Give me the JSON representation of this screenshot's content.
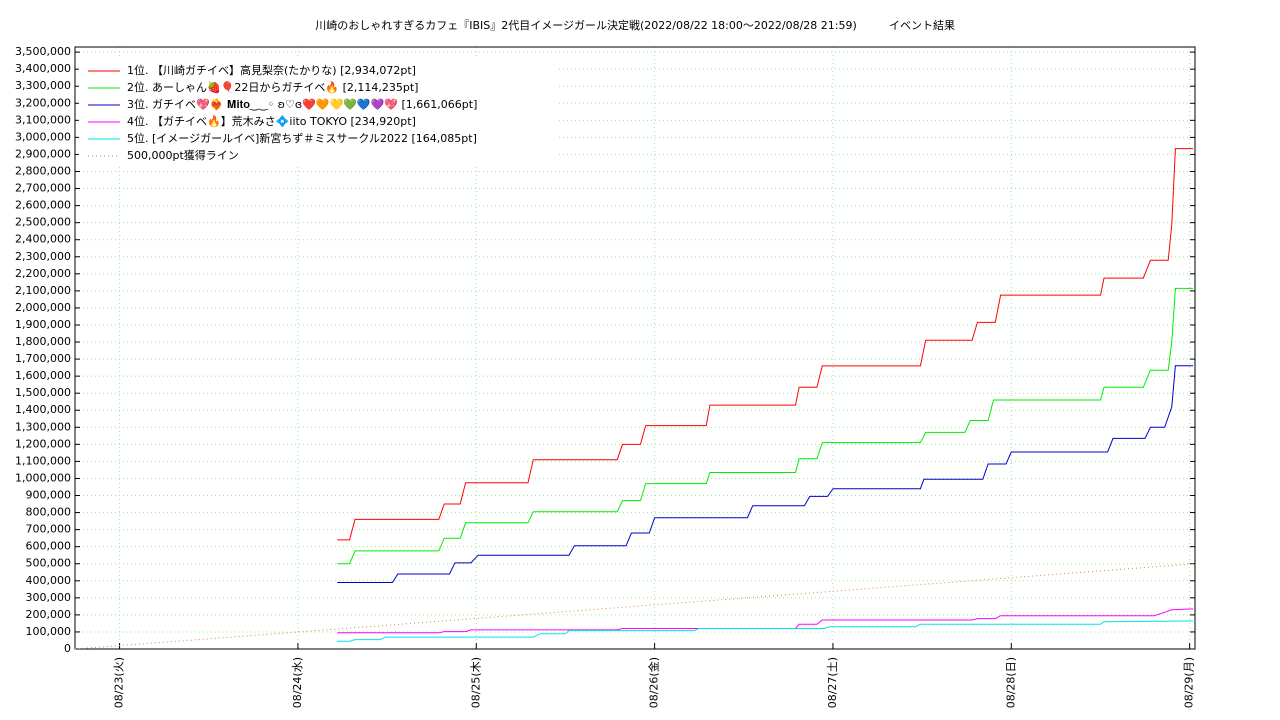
{
  "chart_data": {
    "type": "line",
    "title": "川崎のおしゃれすぎるカフェ『IBIS』2代目イメージガール決定戦(2022/08/22 18:00～2022/08/28 21:59)",
    "subtitle": "イベント結果",
    "xlim": [
      -0.25,
      6.03
    ],
    "xticks": [
      {
        "value": 0,
        "label": "08/23(火)"
      },
      {
        "value": 1,
        "label": "08/24(水)"
      },
      {
        "value": 2,
        "label": "08/25(木)"
      },
      {
        "value": 3,
        "label": "08/26(金)"
      },
      {
        "value": 4,
        "label": "08/27(土)"
      },
      {
        "value": 5,
        "label": "08/28(日)"
      },
      {
        "value": 6,
        "label": "08/29(月)"
      }
    ],
    "ylim": [
      0,
      3530000
    ],
    "yticks": [
      0,
      {
        "value": 100000,
        "label": "100,000"
      },
      {
        "value": 200000,
        "label": "200,000"
      },
      {
        "value": 300000,
        "label": "300,000"
      },
      {
        "value": 400000,
        "label": "400,000"
      },
      {
        "value": 500000,
        "label": "500,000"
      },
      {
        "value": 600000,
        "label": "600,000"
      },
      {
        "value": 700000,
        "label": "700,000"
      },
      {
        "value": 800000,
        "label": "800,000"
      },
      {
        "value": 900000,
        "label": "900,000"
      },
      {
        "value": 1000000,
        "label": "1,000,000"
      },
      {
        "value": 1100000,
        "label": "1,100,000"
      },
      {
        "value": 1200000,
        "label": "1,200,000"
      },
      {
        "value": 1300000,
        "label": "1,300,000"
      },
      {
        "value": 1400000,
        "label": "1,400,000"
      },
      {
        "value": 1500000,
        "label": "1,500,000"
      },
      {
        "value": 1600000,
        "label": "1,600,000"
      },
      {
        "value": 1700000,
        "label": "1,700,000"
      },
      {
        "value": 1800000,
        "label": "1,800,000"
      },
      {
        "value": 1900000,
        "label": "1,900,000"
      },
      {
        "value": 2000000,
        "label": "2,000,000"
      },
      {
        "value": 2100000,
        "label": "2,100,000"
      },
      {
        "value": 2200000,
        "label": "2,200,000"
      },
      {
        "value": 2300000,
        "label": "2,300,000"
      },
      {
        "value": 2400000,
        "label": "2,400,000"
      },
      {
        "value": 2500000,
        "label": "2,500,000"
      },
      {
        "value": 2600000,
        "label": "2,600,000"
      },
      {
        "value": 2700000,
        "label": "2,700,000"
      },
      {
        "value": 2800000,
        "label": "2,800,000"
      },
      {
        "value": 2900000,
        "label": "2,900,000"
      },
      {
        "value": 3000000,
        "label": "3,000,000"
      },
      {
        "value": 3100000,
        "label": "3,100,000"
      },
      {
        "value": 3200000,
        "label": "3,200,000"
      },
      {
        "value": 3300000,
        "label": "3,300,000"
      },
      {
        "value": 3400000,
        "label": "3,400,000"
      },
      {
        "value": 3500000,
        "label": "3,500,000"
      }
    ],
    "grid": true,
    "legend": "upper left",
    "series": [
      {
        "name": "1位. 【川崎ガチイベ】高見梨奈(たかりな) [2,934,072pt]",
        "color": "#ff0000",
        "x": [
          1.22,
          1.29,
          1.32,
          1.79,
          1.82,
          1.91,
          1.94,
          2.29,
          2.32,
          2.79,
          2.82,
          2.92,
          2.95,
          3.29,
          3.31,
          3.79,
          3.81,
          3.91,
          3.94,
          4.49,
          4.52,
          4.78,
          4.81,
          4.91,
          4.94,
          5.5,
          5.52,
          5.74,
          5.78,
          5.88,
          5.9,
          5.92,
          6.02
        ],
        "values": [
          640000,
          640000,
          760000,
          760000,
          850000,
          850000,
          975000,
          975000,
          1110000,
          1110000,
          1200000,
          1200000,
          1310000,
          1310000,
          1430000,
          1430000,
          1535000,
          1535000,
          1660000,
          1660000,
          1810000,
          1810000,
          1915000,
          1915000,
          2075000,
          2075000,
          2175000,
          2175000,
          2280000,
          2280000,
          2490000,
          2934072,
          2934072
        ]
      },
      {
        "name": "2位. あーしゃん🍓🎈22日からガチイベ🔥 [2,114,235pt]",
        "color": "#00ee00",
        "x": [
          1.22,
          1.29,
          1.32,
          1.79,
          1.82,
          1.91,
          1.94,
          2.29,
          2.32,
          2.79,
          2.82,
          2.92,
          2.95,
          3.29,
          3.31,
          3.79,
          3.81,
          3.91,
          3.94,
          4.49,
          4.52,
          4.74,
          4.77,
          4.87,
          4.9,
          5.5,
          5.52,
          5.74,
          5.78,
          5.88,
          5.9,
          5.92,
          6.02
        ],
        "values": [
          500000,
          500000,
          575000,
          575000,
          650000,
          650000,
          740000,
          740000,
          805000,
          805000,
          870000,
          870000,
          970000,
          970000,
          1035000,
          1035000,
          1115000,
          1115000,
          1210000,
          1210000,
          1270000,
          1270000,
          1340000,
          1340000,
          1460000,
          1460000,
          1535000,
          1535000,
          1635000,
          1635000,
          1800000,
          2114235,
          2114235
        ]
      },
      {
        "name": "3位. ガチイベ💖❤️‍🔥 𝐌𝐢𝐭𝐨‿‿◦ ʚ♡ɞ❤️🧡💛💚💙💜💖 [1,661,066pt]",
        "color": "#0000cc",
        "x": [
          1.22,
          1.53,
          1.56,
          1.85,
          1.88,
          1.97,
          2.01,
          2.52,
          2.55,
          2.84,
          2.87,
          2.97,
          3.0,
          3.52,
          3.55,
          3.84,
          3.87,
          3.97,
          4.0,
          4.49,
          4.51,
          4.84,
          4.87,
          4.97,
          5.0,
          5.54,
          5.57,
          5.75,
          5.78,
          5.86,
          5.9,
          5.92,
          6.02
        ],
        "values": [
          390000,
          390000,
          440000,
          440000,
          505000,
          505000,
          550000,
          550000,
          605000,
          605000,
          680000,
          680000,
          770000,
          770000,
          840000,
          840000,
          895000,
          895000,
          940000,
          940000,
          995000,
          995000,
          1085000,
          1085000,
          1155000,
          1155000,
          1235000,
          1235000,
          1300000,
          1300000,
          1420000,
          1661066,
          1661066
        ]
      },
      {
        "name": "4位. 【ガチイベ🔥】荒木みさ💠iito TOKYO [234,920pt]",
        "color": "#ff00ff",
        "x": [
          1.22,
          1.79,
          1.82,
          1.94,
          1.97,
          2.79,
          2.82,
          3.79,
          3.81,
          3.91,
          3.94,
          4.78,
          4.81,
          4.91,
          4.94,
          5.8,
          5.86,
          5.9,
          6.02
        ],
        "values": [
          95000,
          95000,
          102000,
          102000,
          112000,
          112000,
          120000,
          120000,
          145000,
          145000,
          170000,
          170000,
          178000,
          178000,
          195000,
          195000,
          215000,
          230000,
          234920
        ]
      },
      {
        "name": "5位. [イメージガールイベ]新宮ちず＃ミスサークル2022 [164,085pt]",
        "color": "#00e5e5",
        "x": [
          1.22,
          1.29,
          1.32,
          1.46,
          1.49,
          2.32,
          2.36,
          2.5,
          2.52,
          3.22,
          3.25,
          3.95,
          3.98,
          4.46,
          4.49,
          5.5,
          5.52,
          6.02
        ],
        "values": [
          45000,
          45000,
          55000,
          55000,
          70000,
          70000,
          90000,
          90000,
          108000,
          108000,
          120000,
          120000,
          130000,
          130000,
          145000,
          145000,
          160000,
          164085
        ]
      },
      {
        "name": "500,000pt獲得ライン",
        "color": "#cc8844",
        "style": "dotted",
        "x": [
          -0.25,
          6.03
        ],
        "values": [
          0,
          500000
        ]
      }
    ]
  }
}
